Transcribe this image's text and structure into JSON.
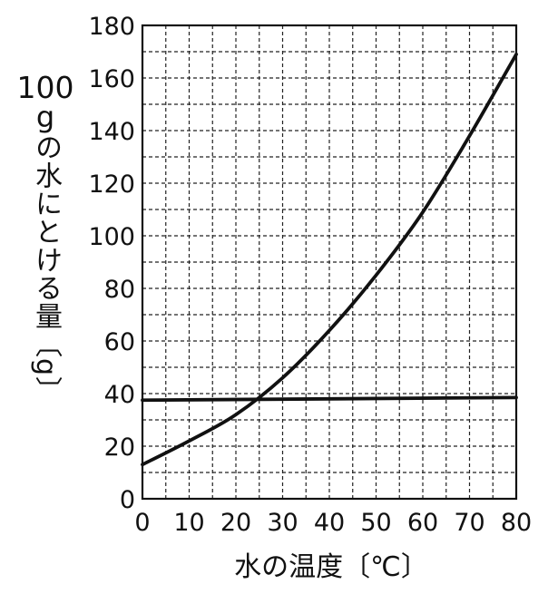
{
  "chart_data": {
    "type": "line",
    "xlabel": "水の温度〔℃〕",
    "ylabel_parts": {
      "number": "100",
      "unit": "g",
      "rest": "の水にとける量〔g〕"
    },
    "xlim": [
      0,
      80
    ],
    "ylim": [
      0,
      180
    ],
    "x_ticks": [
      0,
      10,
      20,
      30,
      40,
      50,
      60,
      70,
      80
    ],
    "y_ticks": [
      0,
      20,
      40,
      60,
      80,
      100,
      120,
      140,
      160,
      180
    ],
    "grid": true,
    "series": [
      {
        "x": [
          0,
          10,
          20,
          30,
          40,
          50,
          60,
          70,
          80
        ],
        "y": [
          13,
          22,
          32,
          46,
          64,
          85,
          109,
          138,
          169
        ]
      },
      {
        "x": [
          0,
          80
        ],
        "y": [
          37.5,
          38.5
        ]
      }
    ]
  }
}
